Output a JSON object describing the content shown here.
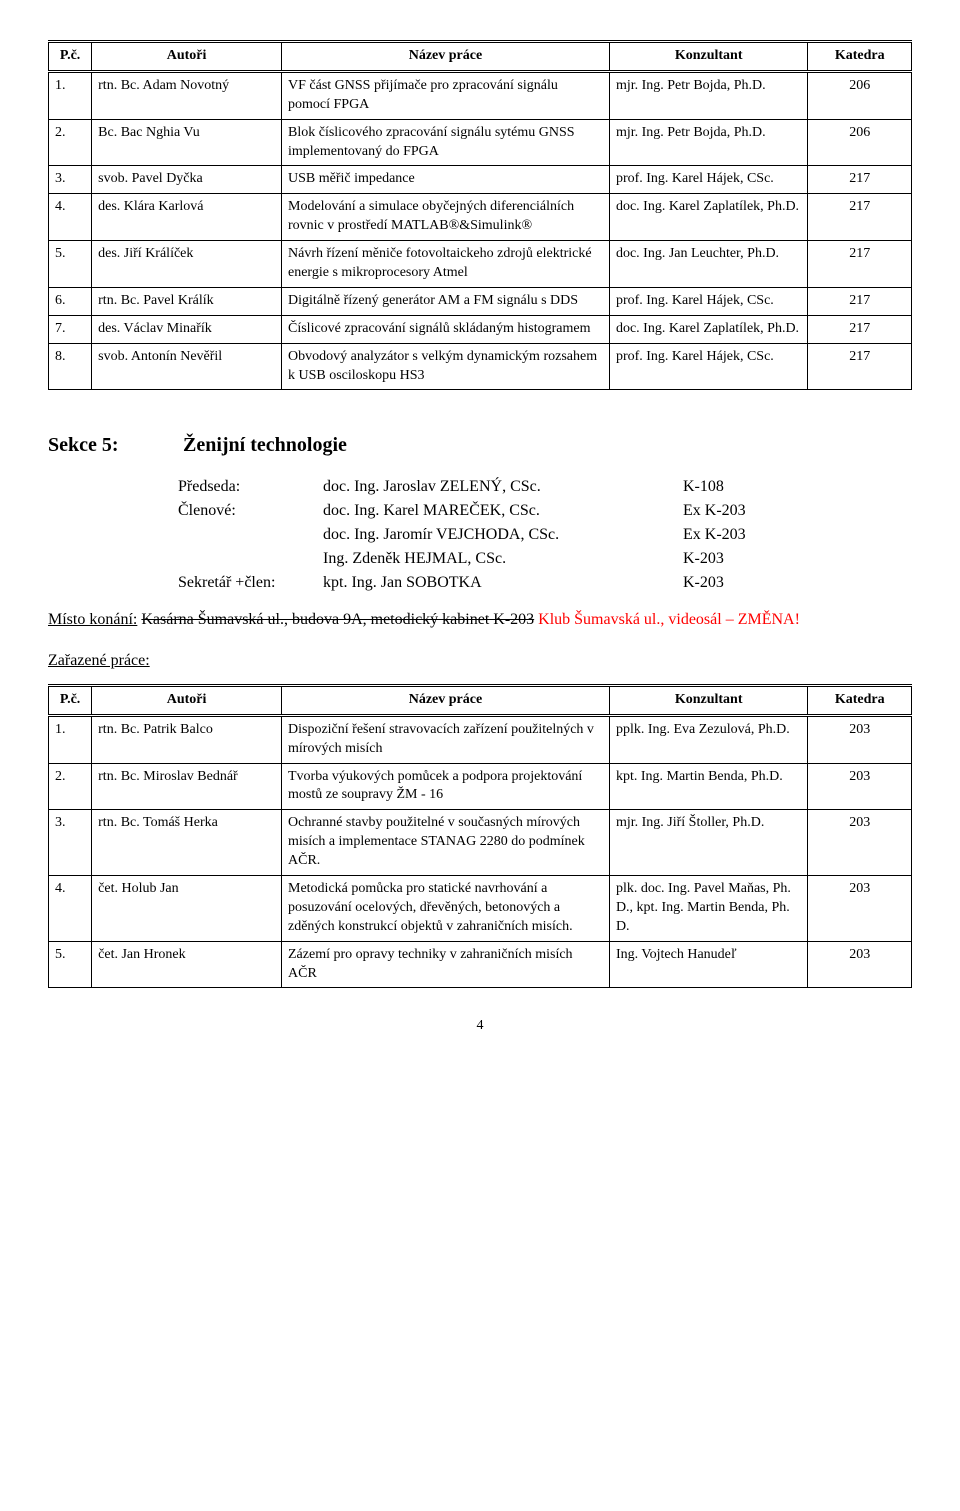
{
  "headers": {
    "pc": "P.č.",
    "autori": "Autoři",
    "nazev": "Název práce",
    "konz": "Konzultant",
    "katedra": "Katedra"
  },
  "table1": [
    {
      "pc": "1.",
      "autori": "rtn. Bc. Adam Novotný",
      "nazev": "VF část GNSS přijímače pro zpracování signálu pomocí FPGA",
      "konz": "mjr. Ing. Petr Bojda, Ph.D.",
      "katedra": "206"
    },
    {
      "pc": "2.",
      "autori": "Bc. Bac Nghia Vu",
      "nazev": "Blok číslicového zpracování signálu sytému GNSS implementovaný do FPGA",
      "konz": "mjr. Ing. Petr Bojda, Ph.D.",
      "katedra": "206"
    },
    {
      "pc": "3.",
      "autori": "svob. Pavel Dyčka",
      "nazev": "USB měřič impedance",
      "konz": "prof. Ing. Karel Hájek, CSc.",
      "katedra": "217"
    },
    {
      "pc": "4.",
      "autori": "des. Klára Karlová",
      "nazev": "Modelování a simulace obyčejných diferenciálních rovnic v prostředí MATLAB®&Simulink®",
      "konz": "doc. Ing. Karel Zaplatílek, Ph.D.",
      "katedra": "217"
    },
    {
      "pc": "5.",
      "autori": "des. Jiří Králíček",
      "nazev": "Návrh řízení měniče fotovoltaickeho zdrojů elektrické energie s mikroprocesory Atmel",
      "konz": "doc. Ing. Jan Leuchter, Ph.D.",
      "katedra": "217"
    },
    {
      "pc": "6.",
      "autori": "rtn. Bc. Pavel Králík",
      "nazev": "Digitálně řízený generátor AM a FM signálu s DDS",
      "konz": "prof. Ing. Karel Hájek, CSc.",
      "katedra": "217"
    },
    {
      "pc": "7.",
      "autori": "des. Václav Minařík",
      "nazev": "Číslicové zpracování signálů skládaným histogramem",
      "konz": "doc. Ing. Karel Zaplatílek, Ph.D.",
      "katedra": "217"
    },
    {
      "pc": "8.",
      "autori": "svob. Antonín Nevěřil",
      "nazev": "Obvodový analyzátor s velkým dynamickým rozsahem k USB osciloskopu HS3",
      "konz": "prof. Ing. Karel Hájek, CSc.",
      "katedra": "217"
    }
  ],
  "section": {
    "label": "Sekce 5:",
    "title": "Ženijní technologie",
    "roles": {
      "predseda": "Předseda:",
      "clenove": "Členové:",
      "sekretar": "Sekretář +člen:"
    },
    "people": [
      {
        "role": "Předseda:",
        "name": "doc. Ing. Jaroslav ZELENÝ, CSc.",
        "code": "K-108"
      },
      {
        "role": "Členové:",
        "name": "doc. Ing. Karel MAREČEK, CSc.",
        "code": "Ex K-203"
      },
      {
        "role": "",
        "name": "doc. Ing. Jaromír VEJCHODA, CSc.",
        "code": "Ex K-203"
      },
      {
        "role": "",
        "name": "Ing. Zdeněk HEJMAL, CSc.",
        "code": "K-203"
      },
      {
        "role": "Sekretář +člen:",
        "name": "kpt. Ing. Jan SOBOTKA",
        "code": "K-203"
      }
    ]
  },
  "misto": {
    "label": "Místo konání:",
    "strike": "Kasárna Šumavská ul., budova 9A, metodický kabinet K-203",
    "red": " Klub Šumavská ul., videosál – ZMĚNA!"
  },
  "zarazene": "Zařazené práce:",
  "table2": [
    {
      "pc": "1.",
      "autori": "rtn. Bc. Patrik Balco",
      "nazev": "Dispoziční řešení stravovacích zařízení použitelných v mírových misích",
      "konz": "pplk. Ing. Eva Zezulová, Ph.D.",
      "katedra": "203"
    },
    {
      "pc": "2.",
      "autori": "rtn. Bc. Miroslav Bednář",
      "nazev": "Tvorba výukových pomůcek a podpora projektování mostů ze soupravy ŽM - 16",
      "konz": "kpt. Ing. Martin Benda, Ph.D.",
      "katedra": "203"
    },
    {
      "pc": "3.",
      "autori": "rtn. Bc. Tomáš Herka",
      "nazev": "Ochranné stavby použitelné v současných mírových misích a implementace STANAG 2280 do podmínek AČR.",
      "konz": "mjr. Ing. Jiří Štoller, Ph.D.",
      "katedra": "203"
    },
    {
      "pc": "4.",
      "autori": "čet. Holub Jan",
      "nazev": "Metodická pomůcka pro statické navrhování a posuzování ocelových, dřevěných, betonových a zděných konstrukcí objektů v zahraničních misích.",
      "konz": "plk. doc. Ing. Pavel Maňas, Ph. D., kpt. Ing. Martin Benda, Ph. D.",
      "katedra": "203"
    },
    {
      "pc": "5.",
      "autori": "čet. Jan Hronek",
      "nazev": "Zázemí pro opravy techniky v zahraničních misích AČR",
      "konz": "Ing. Vojtech Hanudeľ",
      "katedra": "203"
    }
  ],
  "pageNumber": "4"
}
